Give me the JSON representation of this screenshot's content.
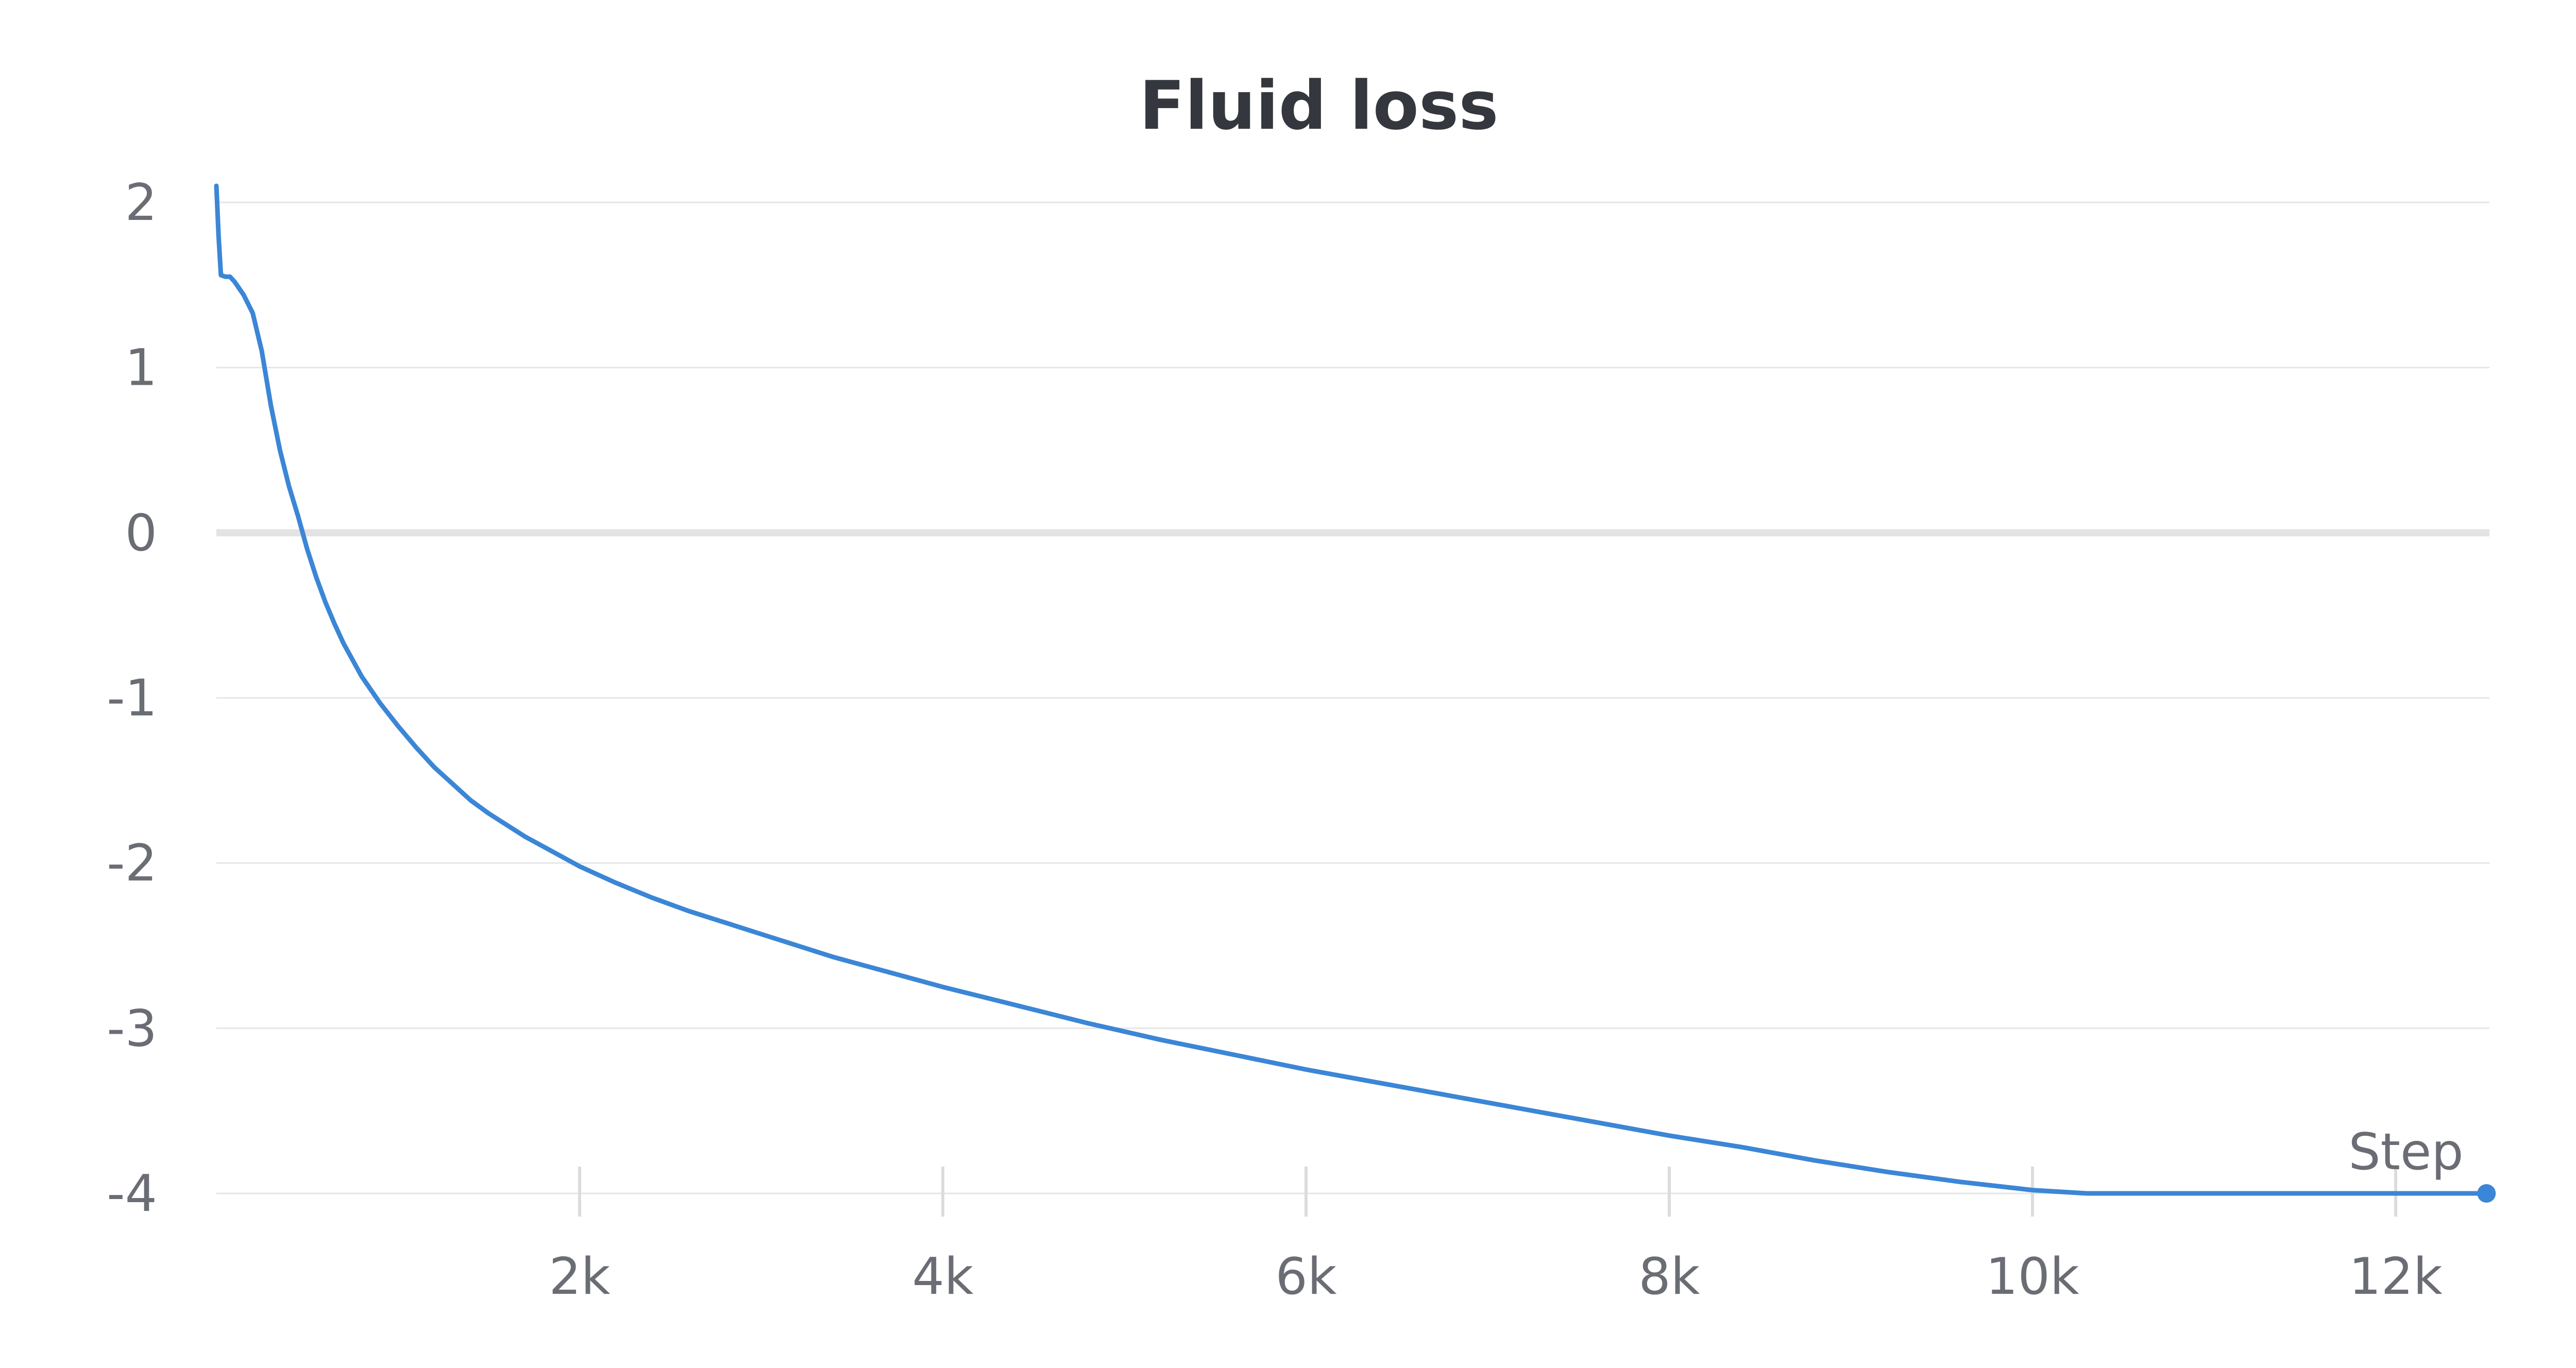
{
  "chart_data": {
    "type": "line",
    "title": "Fluid loss",
    "xlabel": "Step",
    "ylabel": "",
    "xlim": [
      0,
      12500
    ],
    "ylim": [
      -4.2,
      2.1
    ],
    "x_ticks": [
      {
        "value": 2000,
        "label": "2k"
      },
      {
        "value": 4000,
        "label": "4k"
      },
      {
        "value": 6000,
        "label": "6k"
      },
      {
        "value": 8000,
        "label": "8k"
      },
      {
        "value": 10000,
        "label": "10k"
      },
      {
        "value": 12000,
        "label": "12k"
      }
    ],
    "y_ticks": [
      {
        "value": 2,
        "label": "2"
      },
      {
        "value": 1,
        "label": "1"
      },
      {
        "value": 0,
        "label": "0"
      },
      {
        "value": -1,
        "label": "-1"
      },
      {
        "value": -2,
        "label": "-2"
      },
      {
        "value": -3,
        "label": "-3"
      },
      {
        "value": -4,
        "label": "-4"
      }
    ],
    "grid": true,
    "legend": "none",
    "colors": {
      "line": "#3b86d6",
      "grid": "#e6e6e6",
      "zero_line": "#e3e3e3",
      "title": "#34373d",
      "tick_label": "#6b6d75"
    },
    "series": [
      {
        "x": [
          0,
          12,
          25,
          50,
          75,
          100,
          150,
          200,
          250,
          300,
          350,
          400,
          450,
          500,
          550,
          600,
          650,
          700,
          800,
          900,
          1000,
          1100,
          1200,
          1300,
          1400,
          1500,
          1600,
          1700,
          1800,
          1900,
          2000,
          2200,
          2400,
          2600,
          2800,
          3000,
          3200,
          3400,
          3600,
          3800,
          4000,
          4400,
          4800,
          5200,
          5600,
          6000,
          6400,
          6800,
          7200,
          7600,
          8000,
          8400,
          8800,
          9200,
          9600,
          10000,
          10300,
          11000,
          12500
        ],
        "y": [
          2.1,
          1.8,
          1.56,
          1.55,
          1.55,
          1.52,
          1.44,
          1.33,
          1.1,
          0.77,
          0.5,
          0.28,
          0.1,
          -0.1,
          -0.27,
          -0.42,
          -0.55,
          -0.67,
          -0.87,
          -1.03,
          -1.17,
          -1.3,
          -1.42,
          -1.52,
          -1.62,
          -1.7,
          -1.77,
          -1.84,
          -1.9,
          -1.96,
          -2.02,
          -2.12,
          -2.21,
          -2.29,
          -2.36,
          -2.43,
          -2.5,
          -2.57,
          -2.63,
          -2.69,
          -2.75,
          -2.86,
          -2.97,
          -3.07,
          -3.16,
          -3.25,
          -3.33,
          -3.41,
          -3.49,
          -3.57,
          -3.65,
          -3.72,
          -3.8,
          -3.87,
          -3.93,
          -3.98,
          -4.0,
          -4.0,
          -4.0
        ]
      }
    ]
  }
}
